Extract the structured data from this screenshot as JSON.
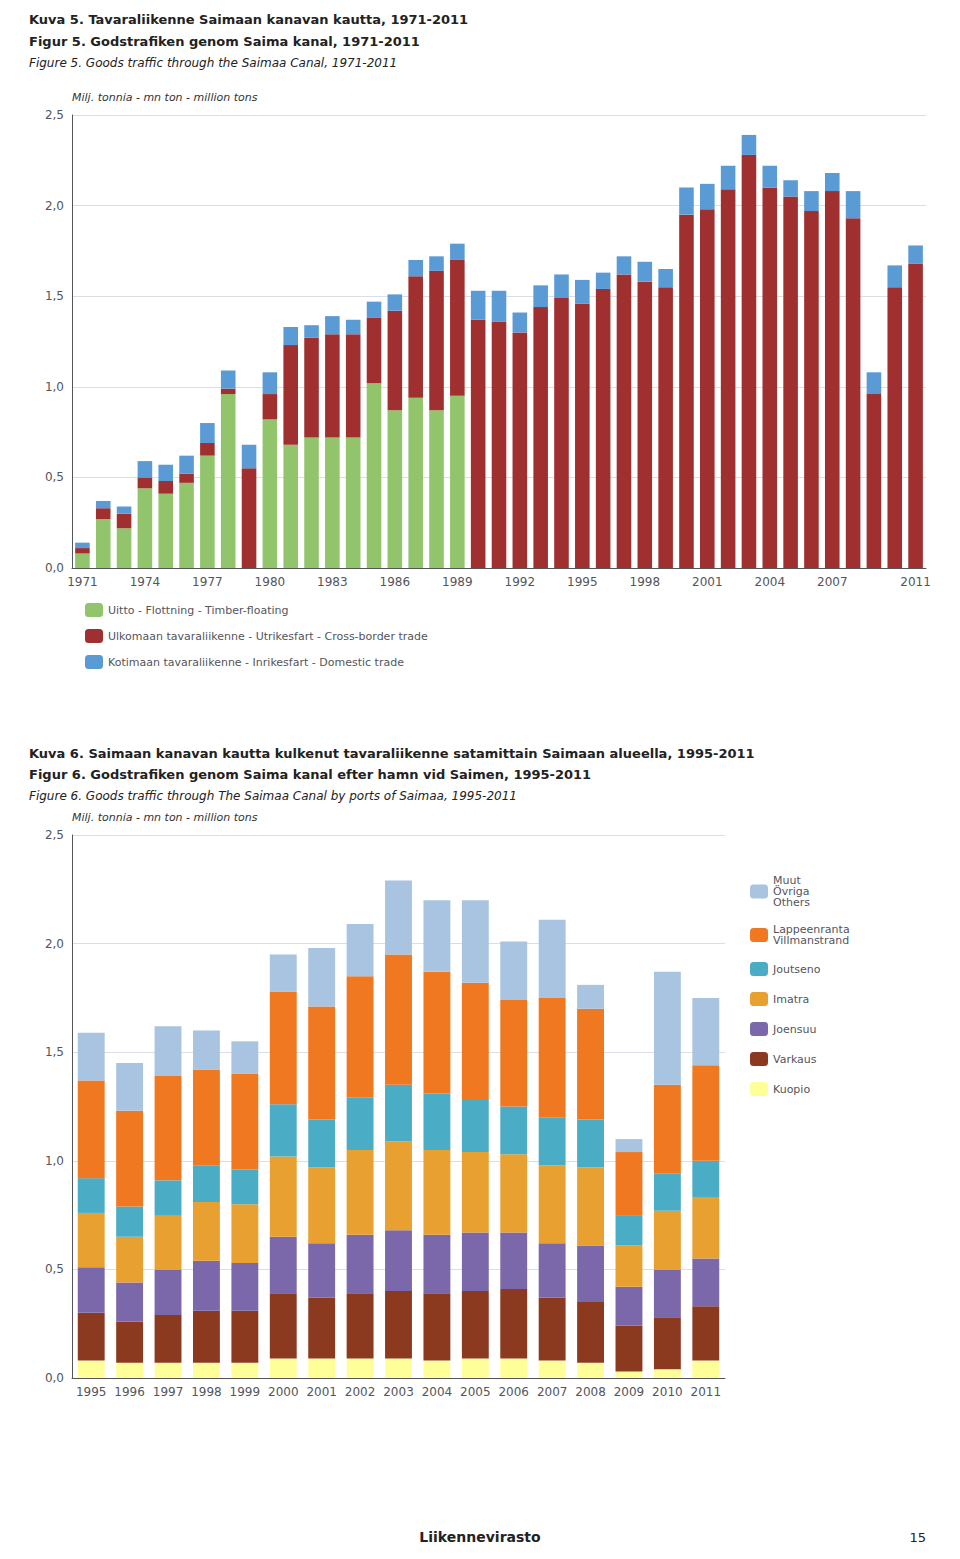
{
  "chart_data": [
    {
      "type": "bar",
      "title": "Kuva 5. Tavaraliikenne Saimaan kanavan kautta, 1971-2011",
      "subtitle": [
        "Figur 5. Godstrafiken genom Saima kanal, 1971-2011",
        "Figure 5. Goods traffic through the Saimaa Canal, 1971-2011"
      ],
      "y_label": "Milj. tonnia - mn ton - million tons",
      "categories": [
        "1971",
        null,
        null,
        "1974",
        null,
        null,
        "1977",
        null,
        null,
        "1980",
        null,
        null,
        "1983",
        null,
        null,
        "1986",
        null,
        null,
        "1989",
        null,
        null,
        "1992",
        null,
        null,
        "1995",
        null,
        null,
        "1998",
        null,
        null,
        "2001",
        null,
        null,
        "2004",
        null,
        null,
        "2007",
        null,
        null,
        null,
        "2011"
      ],
      "series": [
        {
          "name": "Uitto - Flottning - Timber-floating",
          "color": "#92C46C",
          "values": [
            0.08,
            0.27,
            0.22,
            0.44,
            0.41,
            0.47,
            0.62,
            0.96,
            0.0,
            0.82,
            0.68,
            0.72,
            0.72,
            0.72,
            1.02,
            0.87,
            0.94,
            0.87,
            0.95,
            0.0,
            0.0,
            0.0,
            0.0,
            0.0,
            0.0,
            0.0,
            0.0,
            0.0,
            0.0,
            0.0,
            0.0,
            0.0,
            0.0,
            0.0,
            0.0,
            0.0,
            0.0,
            0.0,
            0.0,
            0.0,
            0.0
          ]
        },
        {
          "name": "Ulkomaan tavaraliikenne - Utrikesfart - Cross-border trade",
          "color": "#A03030",
          "values": [
            0.03,
            0.06,
            0.08,
            0.06,
            0.07,
            0.05,
            0.07,
            0.03,
            0.55,
            0.14,
            0.55,
            0.55,
            0.57,
            0.57,
            0.36,
            0.55,
            0.67,
            0.77,
            0.75,
            1.37,
            1.36,
            1.3,
            1.44,
            1.49,
            1.46,
            1.54,
            1.62,
            1.58,
            1.55,
            1.95,
            1.98,
            2.09,
            2.28,
            2.1,
            2.05,
            1.97,
            2.08,
            1.93,
            0.96,
            1.55,
            1.68
          ]
        },
        {
          "name": "Kotimaan tavaraliikenne - Inrikesfart - Domestic trade",
          "color": "#5B9BD5",
          "values": [
            0.03,
            0.04,
            0.04,
            0.09,
            0.09,
            0.1,
            0.11,
            0.1,
            0.13,
            0.12,
            0.1,
            0.07,
            0.1,
            0.08,
            0.09,
            0.09,
            0.09,
            0.08,
            0.09,
            0.16,
            0.17,
            0.11,
            0.12,
            0.13,
            0.13,
            0.09,
            0.1,
            0.11,
            0.1,
            0.15,
            0.14,
            0.13,
            0.11,
            0.12,
            0.09,
            0.11,
            0.1,
            0.15,
            0.12,
            0.12,
            0.1
          ]
        }
      ],
      "stacked": true,
      "ylim": [
        0.0,
        2.5
      ],
      "yticks": [
        {
          "value": 0.0,
          "label": "0,0"
        },
        {
          "value": 0.5,
          "label": "0,5"
        },
        {
          "value": 1.0,
          "label": "1,0"
        },
        {
          "value": 1.5,
          "label": "1,5"
        },
        {
          "value": 2.0,
          "label": "2,0"
        },
        {
          "value": 2.5,
          "label": "2,5"
        }
      ],
      "grid": true,
      "legend": "bottom"
    },
    {
      "type": "bar",
      "title": "Kuva 6. Saimaan kanavan kautta kulkenut tavaraliikenne satamittain Saimaan alueella, 1995-2011",
      "subtitle": [
        "Figur 6. Godstrafiken genom Saima kanal efter hamn vid Saimen, 1995-2011",
        "Figure 6. Goods traffic through The Saimaa Canal by ports of Saimaa, 1995-2011"
      ],
      "y_label": "Milj. tonnia - mn ton - million tons",
      "categories": [
        "1995",
        "1996",
        "1997",
        "1998",
        "1999",
        "2000",
        "2001",
        "2002",
        "2003",
        "2004",
        "2005",
        "2006",
        "2007",
        "2008",
        "2009",
        "2010",
        "2011"
      ],
      "series": [
        {
          "name": "Kuopio",
          "color": "#FFFF99",
          "values": [
            0.08,
            0.07,
            0.07,
            0.07,
            0.07,
            0.09,
            0.09,
            0.09,
            0.09,
            0.08,
            0.09,
            0.09,
            0.08,
            0.07,
            0.03,
            0.04,
            0.08
          ]
        },
        {
          "name": "Varkaus",
          "color": "#8B3A20",
          "values": [
            0.22,
            0.19,
            0.22,
            0.24,
            0.24,
            0.3,
            0.28,
            0.3,
            0.31,
            0.31,
            0.31,
            0.32,
            0.29,
            0.28,
            0.21,
            0.24,
            0.25
          ]
        },
        {
          "name": "Joensuu",
          "color": "#7B68AA",
          "values": [
            0.21,
            0.18,
            0.21,
            0.23,
            0.22,
            0.26,
            0.25,
            0.27,
            0.28,
            0.27,
            0.27,
            0.26,
            0.25,
            0.26,
            0.18,
            0.22,
            0.22
          ]
        },
        {
          "name": "Imatra",
          "color": "#E8A030",
          "values": [
            0.25,
            0.21,
            0.25,
            0.27,
            0.27,
            0.37,
            0.35,
            0.39,
            0.41,
            0.39,
            0.37,
            0.36,
            0.36,
            0.36,
            0.19,
            0.27,
            0.28
          ]
        },
        {
          "name": "Joutseno",
          "color": "#4BACC6",
          "values": [
            0.16,
            0.14,
            0.16,
            0.17,
            0.16,
            0.24,
            0.22,
            0.24,
            0.26,
            0.26,
            0.24,
            0.22,
            0.22,
            0.22,
            0.14,
            0.17,
            0.17
          ]
        },
        {
          "name": "Lappeenranta\nVillmanstrand",
          "color": "#F07820",
          "values": [
            0.45,
            0.44,
            0.48,
            0.44,
            0.44,
            0.52,
            0.52,
            0.56,
            0.6,
            0.56,
            0.54,
            0.49,
            0.55,
            0.51,
            0.29,
            0.41,
            0.44
          ]
        },
        {
          "name": "Muut\nÖvriga\nOthers",
          "color": "#A8C4E0",
          "values": [
            0.22,
            0.22,
            0.23,
            0.18,
            0.15,
            0.17,
            0.27,
            0.24,
            0.34,
            0.33,
            0.38,
            0.27,
            0.36,
            0.11,
            0.06,
            0.52,
            0.31
          ]
        }
      ],
      "stacked": true,
      "ylim": [
        0.0,
        2.5
      ],
      "yticks": [
        {
          "value": 0.0,
          "label": "0,0"
        },
        {
          "value": 0.5,
          "label": "0,5"
        },
        {
          "value": 1.0,
          "label": "1,0"
        },
        {
          "value": 1.5,
          "label": "1,5"
        },
        {
          "value": 2.0,
          "label": "2,0"
        },
        {
          "value": 2.5,
          "label": "2,5"
        }
      ],
      "grid": true,
      "legend": "right",
      "annotations": [
        "Liikennevirasto",
        "15"
      ]
    }
  ]
}
